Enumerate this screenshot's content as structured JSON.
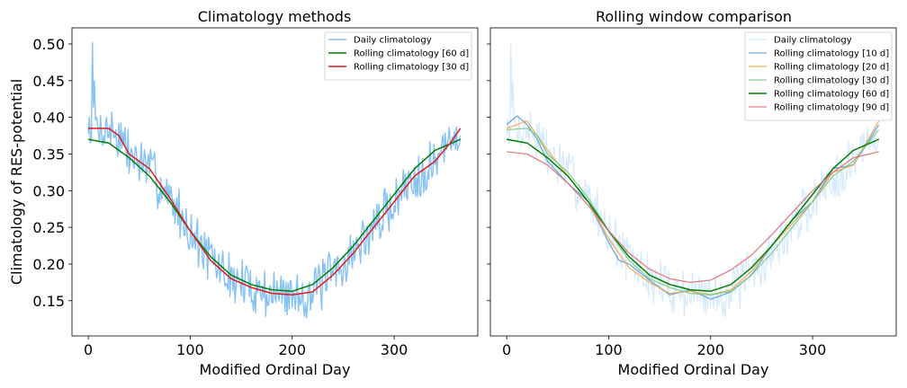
{
  "chart_data": [
    {
      "type": "line",
      "title": "Climatology methods",
      "xlabel": "Modified Ordinal Day",
      "ylabel": "Climatology of RES-potential",
      "xlim": [
        -16,
        382
      ],
      "ylim": [
        0.102,
        0.522
      ],
      "xticks": [
        0,
        100,
        200,
        300
      ],
      "yticks": [
        0.15,
        0.2,
        0.25,
        0.3,
        0.35,
        0.4,
        0.45,
        0.5
      ],
      "ytick_labels": [
        "0.15",
        "0.20",
        "0.25",
        "0.30",
        "0.35",
        "0.40",
        "0.45",
        "0.50"
      ],
      "grid": false,
      "legend": "top-right",
      "series": [
        {
          "name": "Daily climatology",
          "color": "#87c2f5",
          "width": 1.4,
          "opacity": 1,
          "kind": "noisy"
        },
        {
          "name": "Rolling climatology [60 d]",
          "color": "#008000",
          "width": 1.5,
          "opacity": 1,
          "x": [
            0,
            20,
            40,
            60,
            80,
            100,
            120,
            140,
            160,
            180,
            200,
            220,
            240,
            260,
            280,
            300,
            320,
            340,
            365
          ],
          "y": [
            0.37,
            0.365,
            0.345,
            0.32,
            0.285,
            0.245,
            0.21,
            0.185,
            0.172,
            0.165,
            0.163,
            0.172,
            0.195,
            0.225,
            0.26,
            0.295,
            0.33,
            0.355,
            0.37
          ]
        },
        {
          "name": "Rolling climatology [30 d]",
          "color": "#e41a1c",
          "width": 1.5,
          "opacity": 1,
          "x": [
            0,
            20,
            30,
            40,
            60,
            80,
            100,
            110,
            120,
            140,
            160,
            180,
            200,
            220,
            240,
            260,
            280,
            300,
            320,
            340,
            355,
            365
          ],
          "y": [
            0.385,
            0.385,
            0.375,
            0.35,
            0.33,
            0.29,
            0.245,
            0.225,
            0.205,
            0.18,
            0.168,
            0.16,
            0.158,
            0.162,
            0.185,
            0.215,
            0.25,
            0.285,
            0.32,
            0.34,
            0.365,
            0.385
          ]
        }
      ]
    },
    {
      "type": "line",
      "title": "Rolling window comparison",
      "xlabel": "Modified Ordinal Day",
      "ylabel": "",
      "xlim": [
        -16,
        382
      ],
      "ylim": [
        0.102,
        0.522
      ],
      "xticks": [
        0,
        100,
        200,
        300
      ],
      "yticks": [
        0.15,
        0.2,
        0.25,
        0.3,
        0.35,
        0.4,
        0.45,
        0.5
      ],
      "ytick_labels": [],
      "grid": false,
      "legend": "top-right",
      "series": [
        {
          "name": "Daily climatology",
          "color": "#87c2f5",
          "width": 1.2,
          "opacity": 0.35,
          "kind": "noisy"
        },
        {
          "name": "Rolling climatology [10 d]",
          "color": "#5a9bd4",
          "width": 1.3,
          "opacity": 0.85,
          "x": [
            0,
            10,
            20,
            30,
            40,
            60,
            80,
            100,
            110,
            120,
            140,
            160,
            180,
            200,
            220,
            240,
            260,
            280,
            300,
            320,
            340,
            365
          ],
          "y": [
            0.39,
            0.402,
            0.39,
            0.37,
            0.34,
            0.31,
            0.285,
            0.23,
            0.205,
            0.2,
            0.178,
            0.158,
            0.165,
            0.152,
            0.162,
            0.185,
            0.225,
            0.26,
            0.285,
            0.33,
            0.335,
            0.39
          ]
        },
        {
          "name": "Rolling climatology [20 d]",
          "color": "#f5a54a",
          "width": 1.3,
          "opacity": 0.85,
          "x": [
            0,
            20,
            40,
            60,
            80,
            100,
            120,
            140,
            160,
            180,
            200,
            220,
            240,
            260,
            280,
            300,
            320,
            340,
            365
          ],
          "y": [
            0.385,
            0.395,
            0.355,
            0.32,
            0.285,
            0.235,
            0.195,
            0.175,
            0.16,
            0.163,
            0.158,
            0.165,
            0.19,
            0.225,
            0.255,
            0.285,
            0.325,
            0.335,
            0.395
          ]
        },
        {
          "name": "Rolling climatology [30 d]",
          "color": "#7cc87c",
          "width": 1.3,
          "opacity": 0.85,
          "x": [
            0,
            20,
            30,
            40,
            60,
            80,
            100,
            120,
            140,
            160,
            180,
            200,
            220,
            240,
            260,
            280,
            300,
            320,
            340,
            365
          ],
          "y": [
            0.383,
            0.385,
            0.375,
            0.35,
            0.325,
            0.29,
            0.245,
            0.205,
            0.18,
            0.168,
            0.16,
            0.158,
            0.163,
            0.185,
            0.215,
            0.25,
            0.285,
            0.32,
            0.34,
            0.383
          ]
        },
        {
          "name": "Rolling climatology [60 d]",
          "color": "#008000",
          "width": 1.5,
          "opacity": 1,
          "x": [
            0,
            20,
            40,
            60,
            80,
            100,
            120,
            140,
            160,
            180,
            200,
            220,
            240,
            260,
            280,
            300,
            320,
            340,
            365
          ],
          "y": [
            0.37,
            0.365,
            0.345,
            0.32,
            0.285,
            0.245,
            0.21,
            0.185,
            0.172,
            0.165,
            0.163,
            0.172,
            0.195,
            0.225,
            0.26,
            0.295,
            0.33,
            0.355,
            0.37
          ]
        },
        {
          "name": "Rolling climatology [90 d]",
          "color": "#e0707a",
          "width": 1.3,
          "opacity": 0.9,
          "x": [
            0,
            20,
            40,
            60,
            80,
            100,
            120,
            140,
            160,
            180,
            200,
            220,
            240,
            260,
            280,
            300,
            320,
            340,
            365
          ],
          "y": [
            0.353,
            0.35,
            0.335,
            0.31,
            0.28,
            0.245,
            0.215,
            0.193,
            0.18,
            0.175,
            0.178,
            0.192,
            0.212,
            0.24,
            0.27,
            0.3,
            0.325,
            0.345,
            0.353
          ]
        }
      ]
    }
  ]
}
